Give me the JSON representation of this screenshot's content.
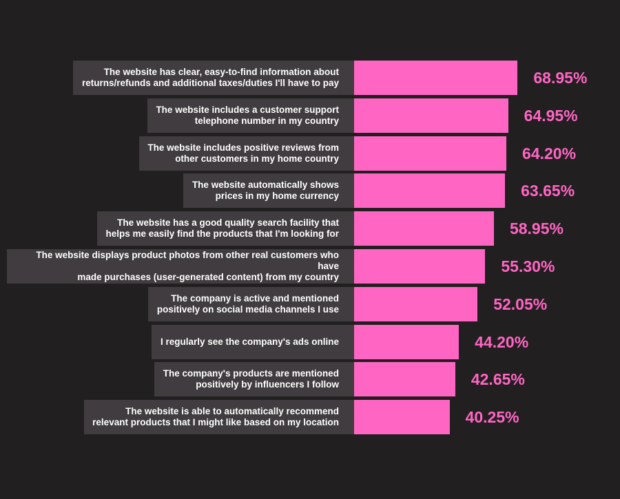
{
  "colors": {
    "background": "#221f20",
    "label_box": "#403c3f",
    "bar": "#ff66c4",
    "value_text": "#ff66c4",
    "label_text": "#ffffff"
  },
  "chart_data": {
    "type": "bar",
    "orientation": "horizontal",
    "title": "",
    "xlabel": "",
    "ylabel": "",
    "grid": false,
    "legend": "none",
    "xlim": [
      0,
      100
    ],
    "categories": [
      "The website has clear, easy-to-find information about\nreturns/refunds and additional taxes/duties I'll have to pay",
      "The website includes a customer support\ntelephone number in my country",
      "The website includes positive reviews from\nother customers in my home country",
      "The website automatically shows\nprices in my home currency",
      "The website has a good quality search facility that\nhelps me easily find the products that I'm looking for",
      "The website displays product photos from other real customers who have\nmade purchases (user-generated content) from my country",
      "The company is active and mentioned\npositively on social media channels I use",
      "I regularly see the company's ads online",
      "The company's products are mentioned\npositively by influencers I follow",
      "The website is able to automatically recommend\nrelevant products that I might like based on my location"
    ],
    "values": [
      68.95,
      64.95,
      64.2,
      63.65,
      58.95,
      55.3,
      52.05,
      44.2,
      42.65,
      40.25
    ],
    "value_labels": [
      "68.95%",
      "64.95%",
      "64.20%",
      "63.65%",
      "58.95%",
      "55.30%",
      "52.05%",
      "44.20%",
      "42.65%",
      "40.25%"
    ]
  }
}
